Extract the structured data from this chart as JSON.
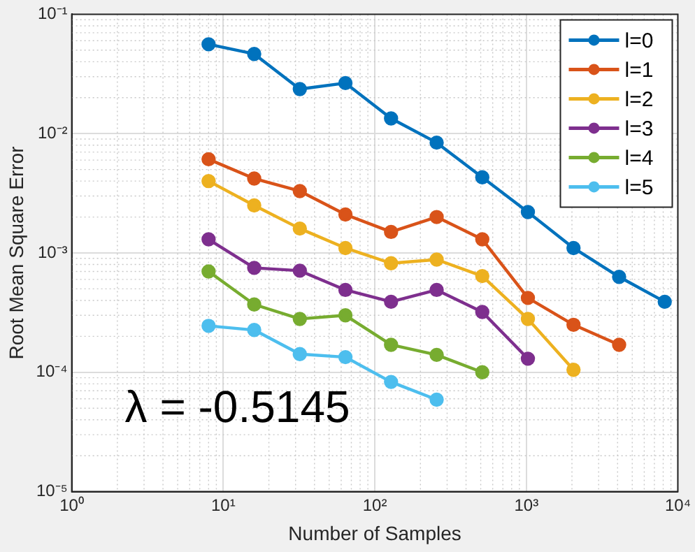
{
  "chart_data": {
    "type": "line",
    "xlabel": "Number of Samples",
    "ylabel": "Root Mean Square Error",
    "x": [
      8,
      16,
      32,
      64,
      128,
      256,
      512,
      1024,
      2048,
      4096,
      8192
    ],
    "series": [
      {
        "name": "l=0",
        "color": "#0072bd",
        "values": [
          0.056,
          0.0465,
          0.0236,
          0.0265,
          0.0134,
          0.0084,
          0.0043,
          0.0022,
          0.0011,
          0.00063,
          0.00039
        ]
      },
      {
        "name": "l=1",
        "color": "#d95319",
        "values": [
          0.0061,
          0.0042,
          0.0033,
          0.0021,
          0.0015,
          0.002,
          0.0013,
          0.00042,
          0.00025,
          0.00017,
          null
        ]
      },
      {
        "name": "l=2",
        "color": "#edb120",
        "values": [
          0.004,
          0.0025,
          0.0016,
          0.0011,
          0.00082,
          0.00088,
          0.00064,
          0.00028,
          0.000105,
          null,
          null
        ]
      },
      {
        "name": "l=3",
        "color": "#7e2f8e",
        "values": [
          0.0013,
          0.00075,
          0.00071,
          0.00049,
          0.00039,
          0.00049,
          0.00032,
          0.00013,
          null,
          null,
          null
        ]
      },
      {
        "name": "l=4",
        "color": "#77ac30",
        "values": [
          0.0007,
          0.00037,
          0.00028,
          0.0003,
          0.00017,
          0.00014,
          0.0001,
          null,
          null,
          null,
          null
        ]
      },
      {
        "name": "l=5",
        "color": "#4dbeee",
        "values": [
          0.000245,
          0.000226,
          0.000142,
          0.000134,
          8.3e-05,
          5.9e-05,
          null,
          null,
          null,
          null,
          null
        ]
      }
    ],
    "log": "xy",
    "xlim": [
      1,
      10000
    ],
    "ylim": [
      1e-05,
      0.1
    ],
    "xticks": [
      {
        "value": 1,
        "label": "10⁰"
      },
      {
        "value": 10,
        "label": "10¹"
      },
      {
        "value": 100,
        "label": "10²"
      },
      {
        "value": 1000,
        "label": "10³"
      },
      {
        "value": 10000,
        "label": "10⁴"
      }
    ],
    "yticks": [
      {
        "value": 1e-05,
        "label": "10⁻⁵"
      },
      {
        "value": 0.0001,
        "label": "10⁻⁴"
      },
      {
        "value": 0.001,
        "label": "10⁻³"
      },
      {
        "value": 0.01,
        "label": "10⁻²"
      },
      {
        "value": 0.1,
        "label": "10⁻¹"
      }
    ],
    "grid": true,
    "legend": "top right",
    "marker": "circle",
    "line_style": "solid",
    "annotations": [
      "λ = -0.5145"
    ]
  }
}
